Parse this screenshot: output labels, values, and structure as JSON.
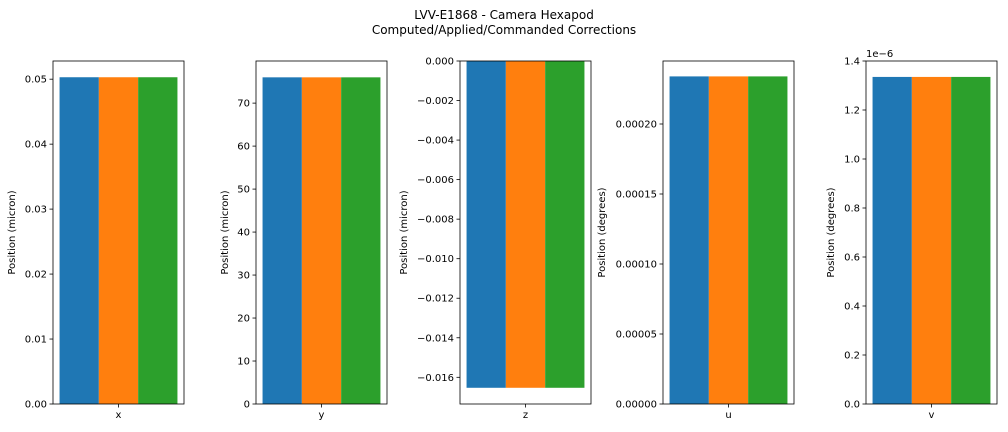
{
  "figure": {
    "title_line1": "LVV-E1868 - Camera Hexapod",
    "title_line2": "Computed/Applied/Commanded Corrections"
  },
  "chart_data": [
    {
      "type": "bar",
      "xlabel": "x",
      "ylabel": "Position (micron)",
      "ylim": [
        0,
        0.0528
      ],
      "yticks": [
        "0.00",
        "0.01",
        "0.02",
        "0.03",
        "0.04",
        "0.05"
      ],
      "ytick_values": [
        0,
        0.01,
        0.02,
        0.03,
        0.04,
        0.05
      ],
      "offset_label": "",
      "series": [
        {
          "color": "#1f77b4",
          "value": 0.0503
        },
        {
          "color": "#ff7f0e",
          "value": 0.0503
        },
        {
          "color": "#2ca02c",
          "value": 0.0503
        }
      ]
    },
    {
      "type": "bar",
      "xlabel": "y",
      "ylabel": "Position (micron)",
      "ylim": [
        0,
        79.8
      ],
      "yticks": [
        "0",
        "10",
        "20",
        "30",
        "40",
        "50",
        "60",
        "70"
      ],
      "ytick_values": [
        0,
        10,
        20,
        30,
        40,
        50,
        60,
        70
      ],
      "offset_label": "",
      "series": [
        {
          "color": "#1f77b4",
          "value": 76.0
        },
        {
          "color": "#ff7f0e",
          "value": 76.0
        },
        {
          "color": "#2ca02c",
          "value": 76.0
        }
      ]
    },
    {
      "type": "bar",
      "xlabel": "z",
      "ylabel": "Position (micron)",
      "ylim": [
        -0.01735,
        0
      ],
      "yticks": [
        "0.000",
        "−0.002",
        "−0.004",
        "−0.006",
        "−0.008",
        "−0.010",
        "−0.012",
        "−0.014",
        "−0.016"
      ],
      "ytick_values": [
        0,
        -0.002,
        -0.004,
        -0.006,
        -0.008,
        -0.01,
        -0.012,
        -0.014,
        -0.016
      ],
      "offset_label": "",
      "series": [
        {
          "color": "#1f77b4",
          "value": -0.01653
        },
        {
          "color": "#ff7f0e",
          "value": -0.01653
        },
        {
          "color": "#2ca02c",
          "value": -0.01653
        }
      ]
    },
    {
      "type": "bar",
      "xlabel": "u",
      "ylabel": "Position (degrees)",
      "ylim": [
        0,
        0.000245
      ],
      "yticks": [
        "0.00000",
        "0.00005",
        "0.00010",
        "0.00015",
        "0.00020"
      ],
      "ytick_values": [
        0,
        5e-05,
        0.0001,
        0.00015,
        0.0002
      ],
      "offset_label": "",
      "series": [
        {
          "color": "#1f77b4",
          "value": 0.000234
        },
        {
          "color": "#ff7f0e",
          "value": 0.000234
        },
        {
          "color": "#2ca02c",
          "value": 0.000234
        }
      ]
    },
    {
      "type": "bar",
      "xlabel": "v",
      "ylabel": "Position (degrees)",
      "ylim": [
        0,
        1.4
      ],
      "yticks": [
        "0.0",
        "0.2",
        "0.4",
        "0.6",
        "0.8",
        "1.0",
        "1.2",
        "1.4"
      ],
      "ytick_values": [
        0,
        0.2,
        0.4,
        0.6,
        0.8,
        1.0,
        1.2,
        1.4
      ],
      "offset_label": "1e−6",
      "series": [
        {
          "color": "#1f77b4",
          "value": 1.335
        },
        {
          "color": "#ff7f0e",
          "value": 1.335
        },
        {
          "color": "#2ca02c",
          "value": 1.335
        }
      ]
    }
  ]
}
